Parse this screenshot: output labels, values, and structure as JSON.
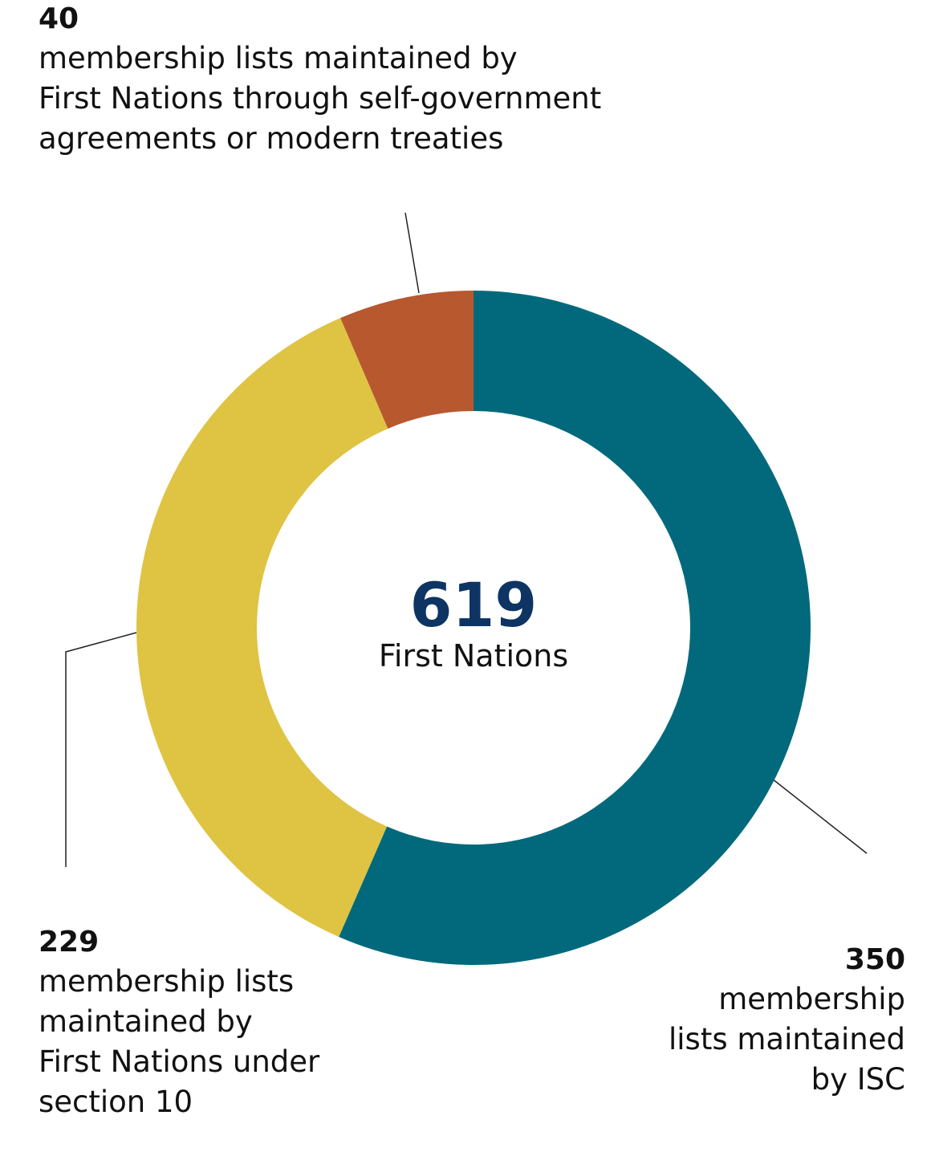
{
  "chart_data": {
    "type": "donut",
    "categories": [
      [
        "membership",
        "lists maintained",
        "by ISC"
      ],
      [
        "membership lists",
        "maintained by",
        "First Nations under",
        "section 10"
      ],
      [
        "membership lists maintained by",
        "First Nations through self-government",
        "agreements or modern treaties"
      ]
    ],
    "values": [
      350,
      229,
      40
    ],
    "colors": [
      "#02697c",
      "#dfc343",
      "#b8582e"
    ],
    "total": 619,
    "center_label": "First Nations"
  }
}
